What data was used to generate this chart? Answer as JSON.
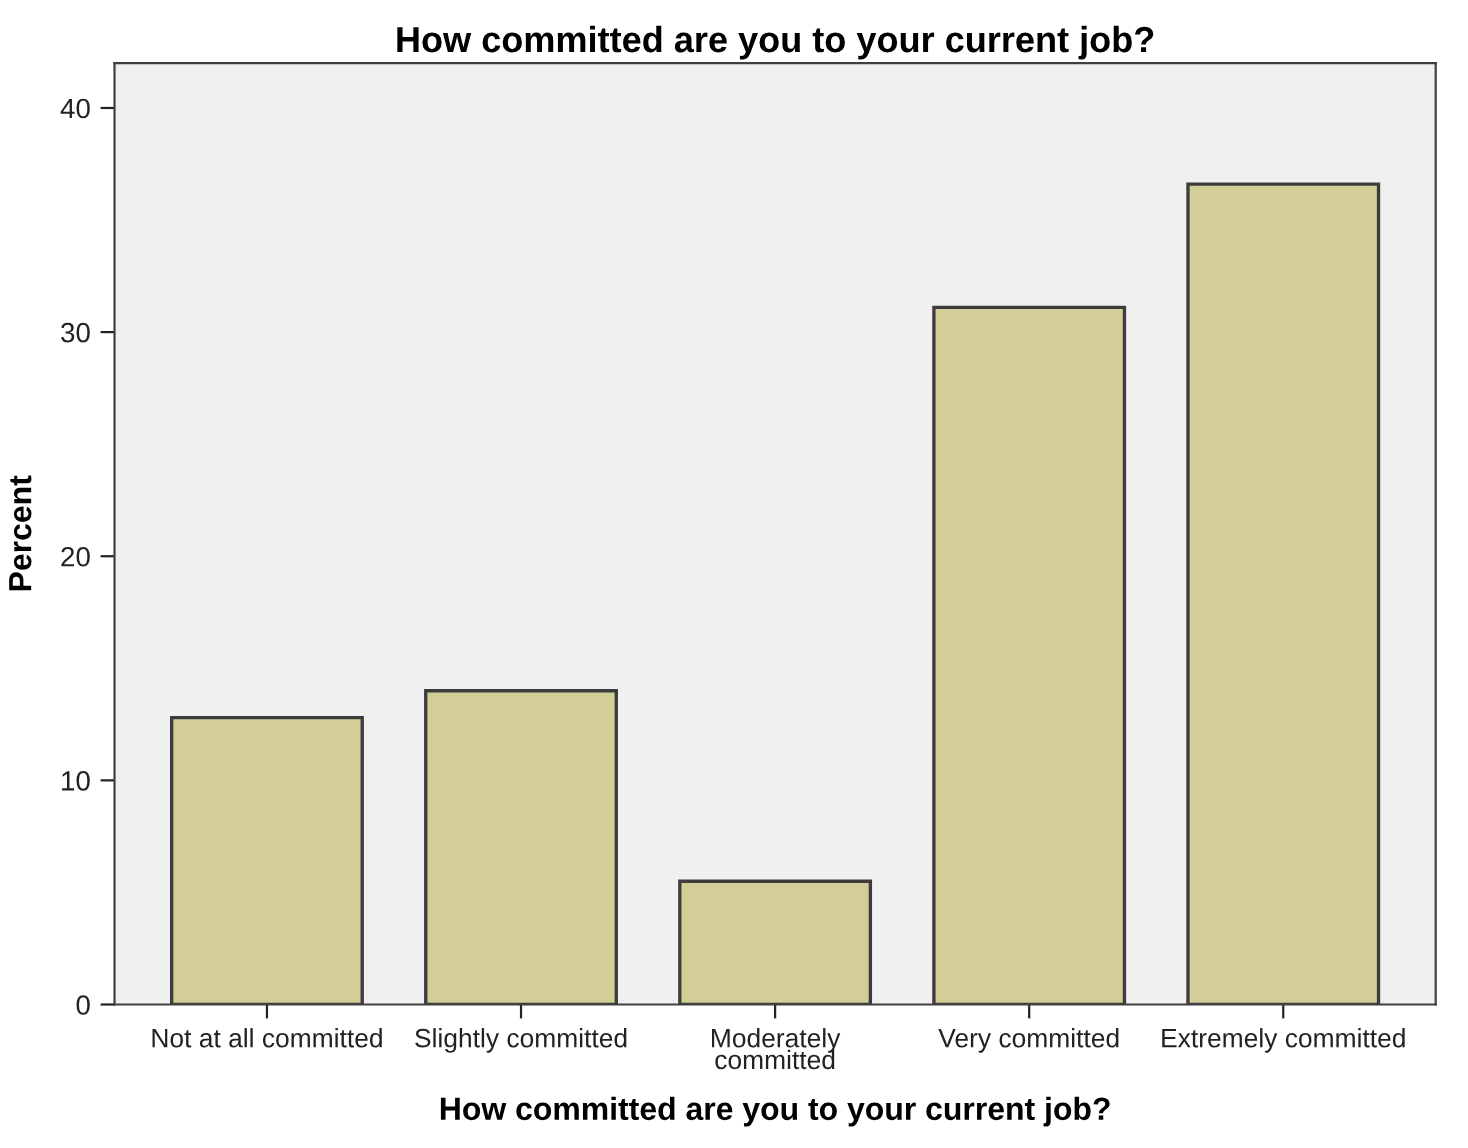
{
  "chart_data": {
    "type": "bar",
    "title": "How committed are you to your current job?",
    "xlabel": "How committed are you to your current job?",
    "ylabel": "Percent",
    "categories": [
      "Not at all committed",
      "Slightly committed",
      "Moderately\ncommitted",
      "Very committed",
      "Extremely committed"
    ],
    "values": [
      12.8,
      14.0,
      5.5,
      31.1,
      36.6
    ],
    "color": "#d3ce97",
    "ylim": [
      0,
      42
    ],
    "yticks": [
      0,
      10,
      20,
      30,
      40
    ],
    "grid": false
  }
}
